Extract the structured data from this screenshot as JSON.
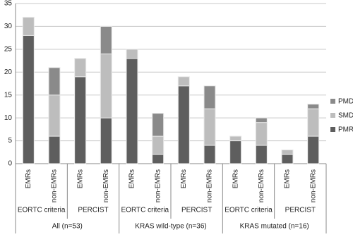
{
  "chart_data": {
    "type": "stacked_bar",
    "categories": [
      "EMRs",
      "non-EMRs",
      "EMRs",
      "non-EMRs",
      "EMRs",
      "non-EMRs",
      "EMRs",
      "non-EMRs",
      "EMRs",
      "non-EMRs",
      "EMRs",
      "non-EMRs"
    ],
    "group_labels": [
      "EORTC criteria",
      "PERCIST",
      "EORTC criteria",
      "PERCIST",
      "EORTC criteria",
      "PERCIST"
    ],
    "super_group_labels": [
      "All (n=53)",
      "KRAS wild-type (n=36)",
      "KRAS mutated (n=16)"
    ],
    "series": [
      {
        "name": "PMR",
        "color": "#5e5e5e",
        "values": [
          28,
          6,
          19,
          10,
          23,
          2,
          17,
          4,
          5,
          4,
          2,
          6
        ]
      },
      {
        "name": "SMD",
        "color": "#bdbdbd",
        "values": [
          4,
          9,
          4,
          14,
          2,
          4,
          2,
          8,
          1,
          5,
          1,
          6
        ]
      },
      {
        "name": "PMD",
        "color": "#8a8a8a",
        "values": [
          0,
          6,
          0,
          6,
          0,
          5,
          0,
          5,
          0,
          1,
          0,
          1
        ]
      }
    ],
    "ylim": [
      0,
      35
    ],
    "yticks": [
      0,
      5,
      10,
      15,
      20,
      25,
      30,
      35
    ],
    "grid": true
  }
}
